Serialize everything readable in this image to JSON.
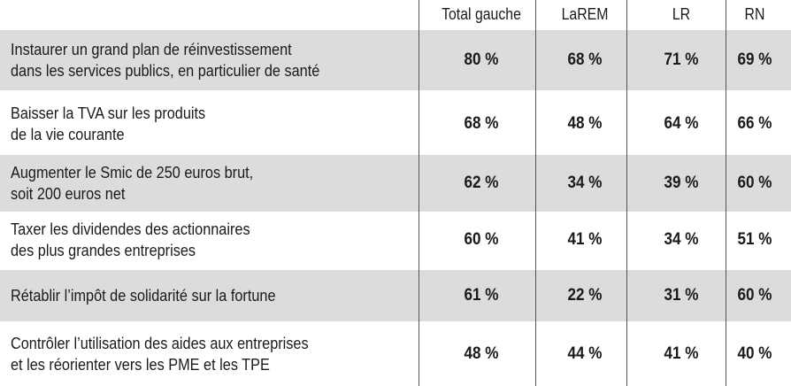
{
  "chart_data": {
    "type": "table",
    "columns": [
      "Total gauche",
      "LaREM",
      "LR",
      "RN"
    ],
    "rows": [
      {
        "label": "Instaurer un grand plan de réinvestissement\ndans les services publics, en particulier de santé",
        "values": [
          "80 %",
          "68 %",
          "71 %",
          "69 %"
        ],
        "shaded": true
      },
      {
        "label": "Baisser la TVA sur les produits\nde la vie courante",
        "values": [
          "68 %",
          "48 %",
          "64 %",
          "66 %"
        ],
        "shaded": false
      },
      {
        "label": "Augmenter le Smic de 250 euros brut,\nsoit 200 euros net",
        "values": [
          "62 %",
          "34 %",
          "39 %",
          "60 %"
        ],
        "shaded": true
      },
      {
        "label": "Taxer les dividendes des actionnaires\ndes plus grandes entreprises",
        "values": [
          "60 %",
          "41 %",
          "34 %",
          "51 %"
        ],
        "shaded": false
      },
      {
        "label": "Rétablir l’impôt de solidarité sur la fortune",
        "values": [
          "61 %",
          "22 %",
          "31 %",
          "60 %"
        ],
        "shaded": true
      },
      {
        "label": "Contrôler l’utilisation des aides aux entreprises\net les réorienter vers les PME et les TPE",
        "values": [
          "48 %",
          "44 %",
          "41 %",
          "40 %"
        ],
        "shaded": false
      }
    ]
  },
  "colors": {
    "shade": "#dcdcdc",
    "text": "#1a1a1a",
    "rule": "#555555"
  }
}
